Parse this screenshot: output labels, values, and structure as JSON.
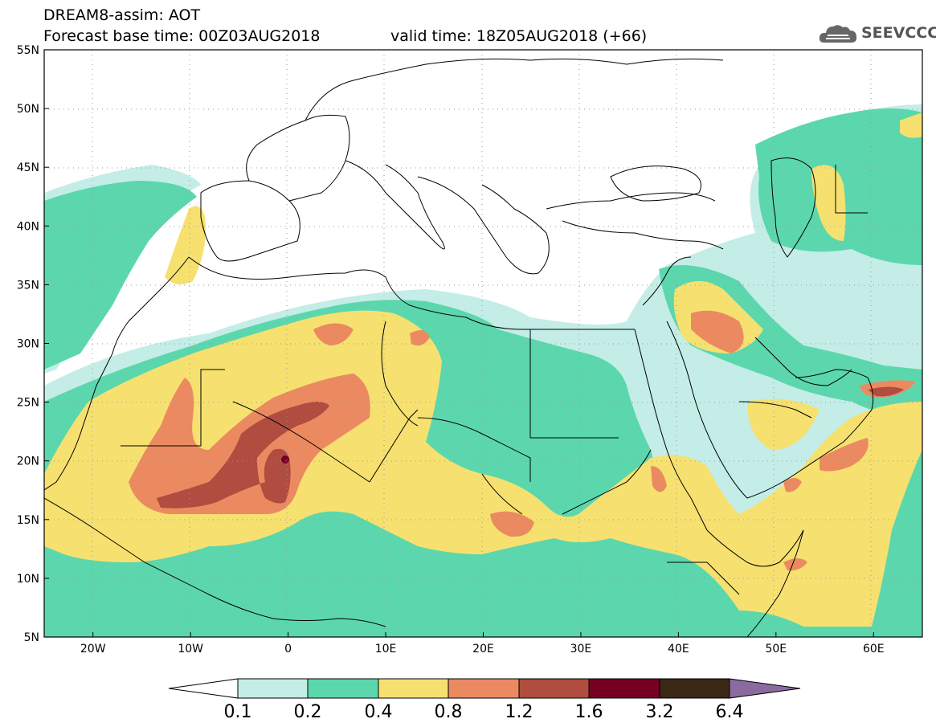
{
  "header": {
    "title": "DREAM8-assim: AOT",
    "base_time": "Forecast base time: 00Z03AUG2018",
    "valid_time": "valid time: 18Z05AUG2018 (+66)"
  },
  "logo": {
    "text": "SEEVCCC",
    "icon": "cloud-icon"
  },
  "map": {
    "lat_labels": [
      "55N",
      "50N",
      "45N",
      "40N",
      "35N",
      "30N",
      "25N",
      "20N",
      "15N",
      "10N",
      "5N"
    ],
    "lon_labels": [
      "20W",
      "10W",
      "0",
      "10E",
      "20E",
      "30E",
      "40E",
      "50E",
      "60E"
    ],
    "lat_values": [
      55,
      50,
      45,
      40,
      35,
      30,
      25,
      20,
      15,
      10,
      5
    ],
    "lon_values": [
      -20,
      -10,
      0,
      10,
      20,
      30,
      40,
      50,
      60
    ],
    "lon_range": [
      -25,
      65
    ],
    "lat_range": [
      5,
      55
    ]
  },
  "colorbar": {
    "levels": [
      "0.1",
      "0.2",
      "0.4",
      "0.8",
      "1.2",
      "1.6",
      "3.2",
      "6.4"
    ],
    "colors": [
      "#ffffff",
      "#c4ede7",
      "#5cd7ad",
      "#f6e170",
      "#eb8a61",
      "#b04c40",
      "#760023",
      "#3b2815",
      "#8b6aa0"
    ]
  }
}
